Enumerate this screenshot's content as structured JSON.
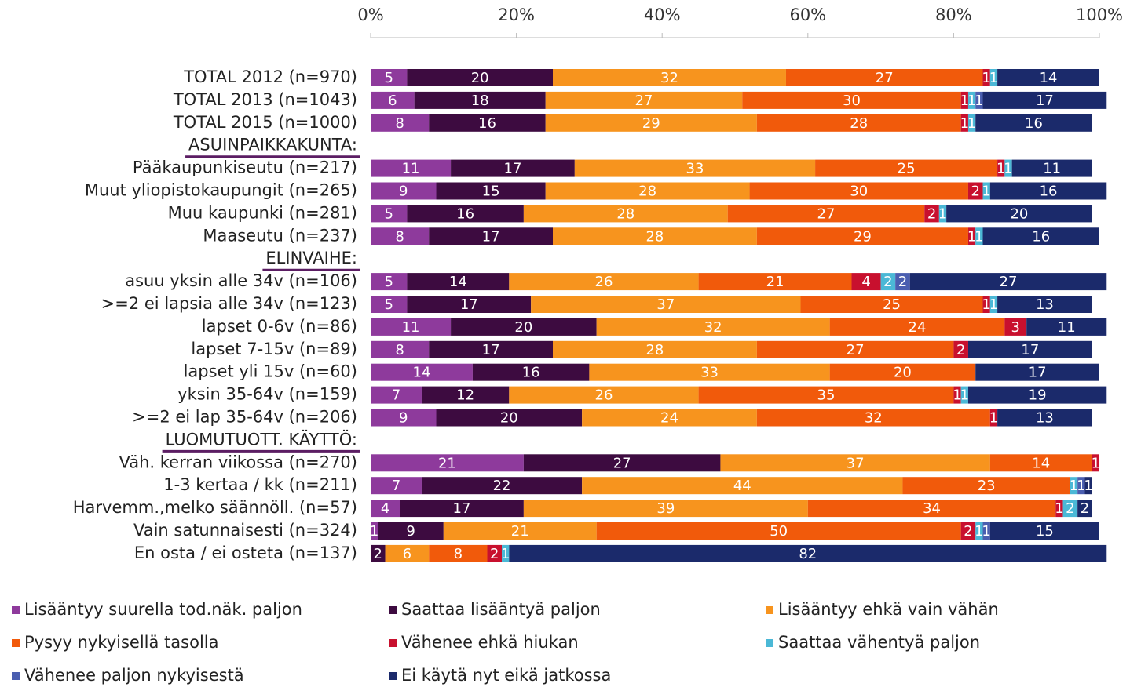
{
  "chart_data": {
    "type": "stacked-bar-horizontal",
    "categories": [
      "TOTAL 2012 (n=970)",
      "TOTAL 2013 (n=1043)",
      "TOTAL 2015 (n=1000)",
      "ASUINPAIKKAKUNTA:",
      "Pääkaupunkiseutu (n=217)",
      "Muut yliopistokaupungit (n=265)",
      "Muu kaupunki (n=281)",
      "Maaseutu (n=237)",
      "ELINVAIHE:",
      "asuu yksin alle 34v (n=106)",
      ">=2 ei lapsia alle 34v (n=123)",
      "lapset 0-6v (n=86)",
      "lapset 7-15v (n=89)",
      "lapset yli 15v (n=60)",
      "yksin 35-64v (n=159)",
      ">=2 ei lap 35-64v (n=206)",
      "LUOMUTUOTT. KÄYTTÖ:",
      "Väh. kerran viikossa (n=270)",
      "1-3 kertaa / kk (n=211)",
      "Harvemm.,melko säännöll. (n=57)",
      "Vain satunnaisesti (n=324)",
      "En osta / ei osteta (n=137)"
    ],
    "series": [
      {
        "name": "Lisääntyy suurella tod.näk. paljon",
        "color": "#8e3a9c",
        "values": [
          5,
          6,
          8,
          null,
          11,
          9,
          5,
          8,
          null,
          5,
          5,
          11,
          8,
          14,
          7,
          9,
          null,
          21,
          7,
          4,
          1,
          null
        ]
      },
      {
        "name": "Saattaa lisääntyä paljon",
        "color": "#3d0b40",
        "values": [
          20,
          18,
          16,
          null,
          17,
          15,
          16,
          17,
          null,
          14,
          17,
          20,
          17,
          16,
          12,
          20,
          null,
          27,
          22,
          17,
          9,
          2
        ]
      },
      {
        "name": "Lisääntyy ehkä vain vähän",
        "color": "#f7941e",
        "values": [
          32,
          27,
          29,
          null,
          33,
          28,
          28,
          28,
          null,
          26,
          37,
          32,
          28,
          33,
          26,
          24,
          null,
          37,
          44,
          39,
          21,
          6
        ]
      },
      {
        "name": "Pysyy nykyisellä tasolla",
        "color": "#f15a0b",
        "values": [
          27,
          30,
          28,
          null,
          25,
          30,
          27,
          29,
          null,
          21,
          25,
          24,
          27,
          20,
          35,
          32,
          null,
          14,
          23,
          34,
          50,
          8
        ]
      },
      {
        "name": "Vähenee ehkä hiukan",
        "color": "#c8102e",
        "values": [
          1,
          1,
          1,
          null,
          1,
          2,
          2,
          1,
          null,
          4,
          1,
          3,
          2,
          null,
          1,
          1,
          null,
          1,
          null,
          1,
          2,
          2
        ]
      },
      {
        "name": "Saattaa vähentyä paljon",
        "color": "#4bb8d6",
        "values": [
          1,
          1,
          1,
          null,
          1,
          1,
          1,
          1,
          null,
          2,
          1,
          null,
          null,
          null,
          1,
          null,
          null,
          null,
          1,
          2,
          1,
          1
        ]
      },
      {
        "name": "Vähenee paljon nykyisestä",
        "color": "#4a5eb0",
        "values": [
          null,
          1,
          null,
          null,
          null,
          null,
          null,
          null,
          null,
          2,
          null,
          null,
          null,
          null,
          null,
          null,
          null,
          null,
          1,
          null,
          1,
          null
        ]
      },
      {
        "name": "Ei käytä nyt eikä jatkossa",
        "color": "#1b2a6b",
        "values": [
          14,
          17,
          16,
          null,
          11,
          16,
          20,
          16,
          null,
          27,
          13,
          11,
          17,
          17,
          19,
          13,
          null,
          null,
          1,
          2,
          15,
          82
        ]
      }
    ],
    "xlim": [
      0,
      100
    ],
    "xticks": [
      {
        "value": 0,
        "label": "0%"
      },
      {
        "value": 20,
        "label": "20%"
      },
      {
        "value": 40,
        "label": "40%"
      },
      {
        "value": 60,
        "label": "60%"
      },
      {
        "value": 80,
        "label": "80%"
      },
      {
        "value": 100,
        "label": "100%"
      }
    ],
    "legend": "bottom"
  }
}
